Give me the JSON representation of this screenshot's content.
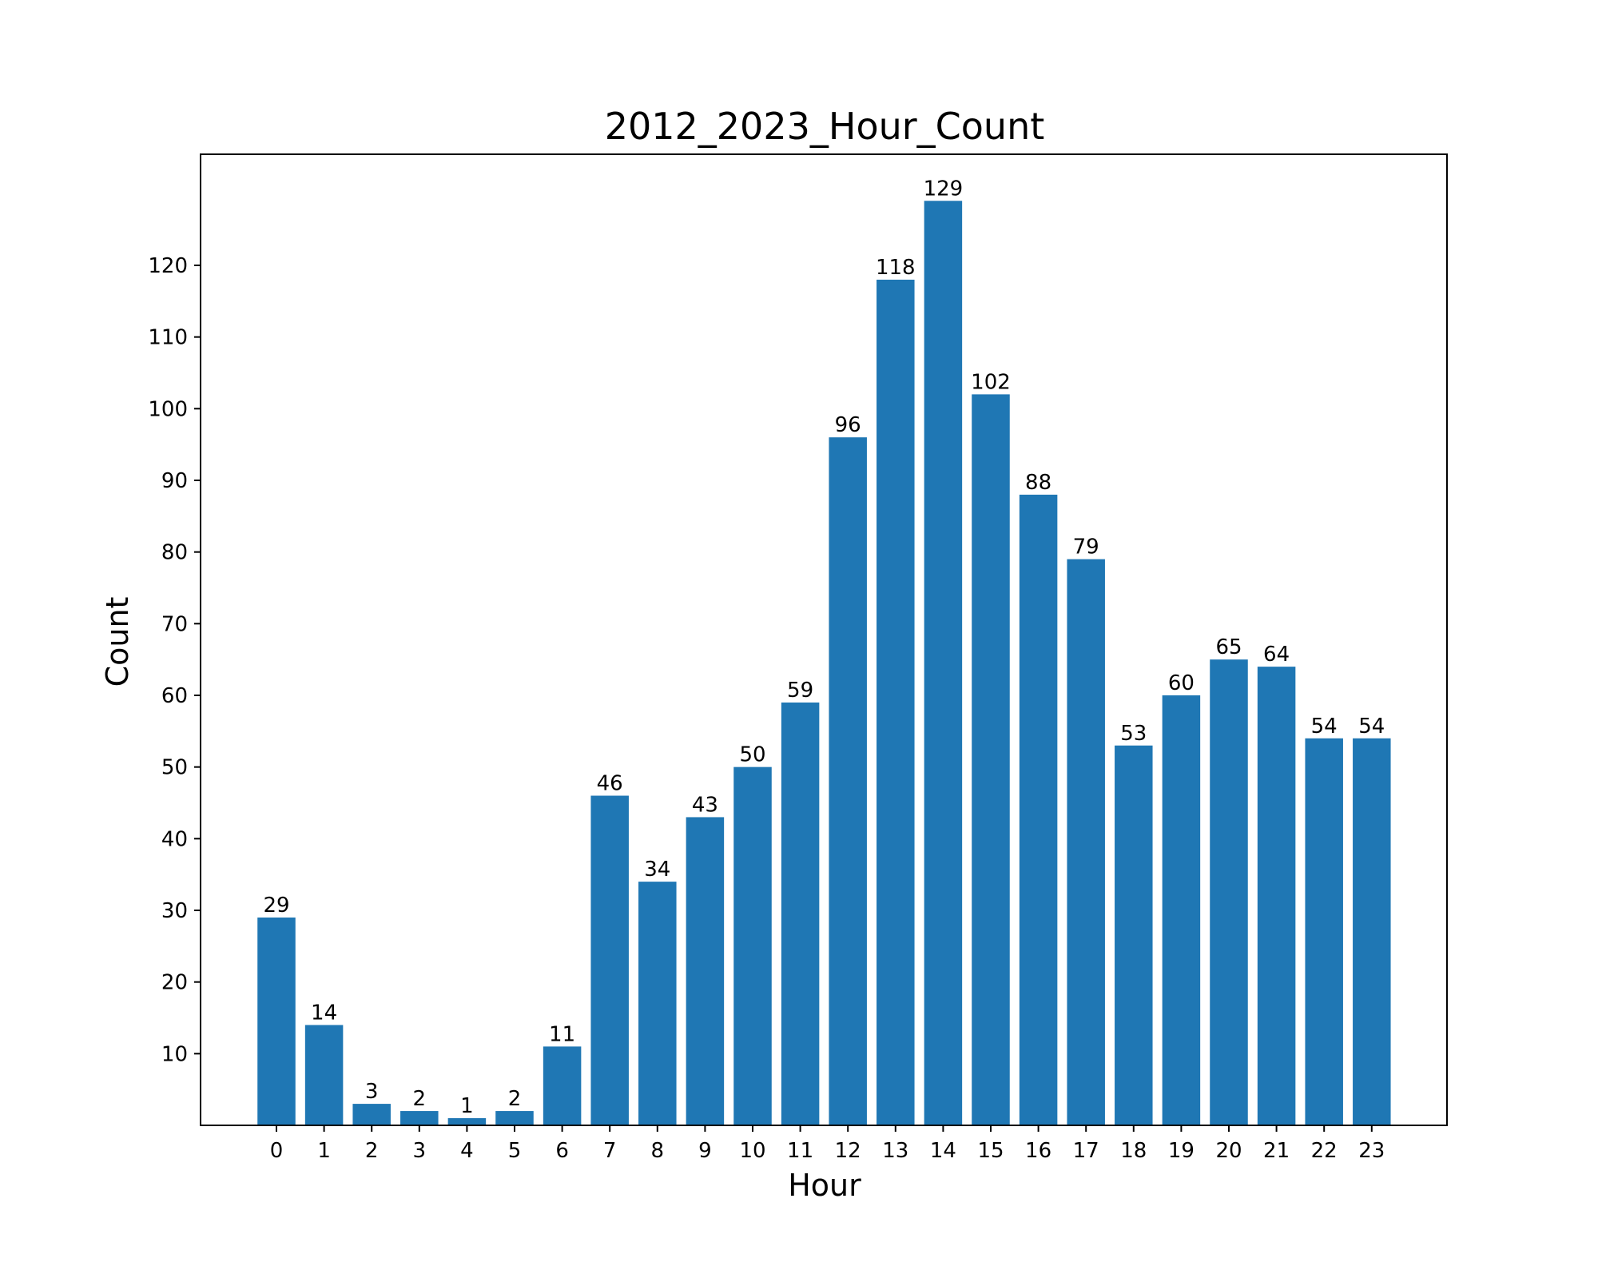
{
  "chart_data": {
    "type": "bar",
    "title": "2012_2023_Hour_Count",
    "xlabel": "Hour",
    "ylabel": "Count",
    "categories": [
      "0",
      "1",
      "2",
      "3",
      "4",
      "5",
      "6",
      "7",
      "8",
      "9",
      "10",
      "11",
      "12",
      "13",
      "14",
      "15",
      "16",
      "17",
      "18",
      "19",
      "20",
      "21",
      "22",
      "23"
    ],
    "values": [
      29,
      14,
      3,
      2,
      1,
      2,
      11,
      46,
      34,
      43,
      50,
      59,
      96,
      118,
      129,
      102,
      88,
      79,
      53,
      60,
      65,
      64,
      54,
      54
    ],
    "yticks": [
      10,
      20,
      30,
      40,
      50,
      60,
      70,
      80,
      90,
      100,
      110,
      120
    ],
    "ylim": [
      0,
      135.5
    ],
    "bar_color": "#1f77b4",
    "grid": false,
    "legend": "none"
  }
}
